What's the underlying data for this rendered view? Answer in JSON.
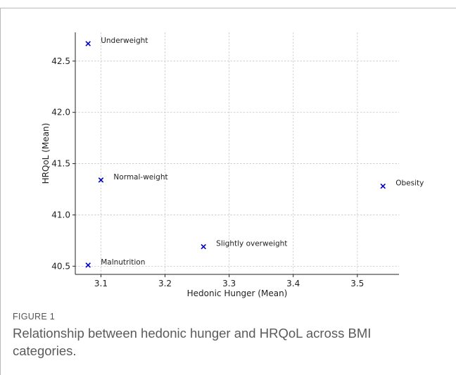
{
  "figure": {
    "label": "FIGURE 1",
    "caption": "Relationship between hedonic hunger and HRQoL across BMI categories."
  },
  "chart_data": {
    "type": "scatter",
    "title": "",
    "xlabel": "Hedonic Hunger (Mean)",
    "ylabel": "HRQoL (Mean)",
    "xlim": [
      3.06,
      3.565
    ],
    "ylim": [
      40.42,
      42.78
    ],
    "xticks": [
      "3.1",
      "3.2",
      "3.3",
      "3.4",
      "3.5"
    ],
    "yticks": [
      "40.5",
      "41.0",
      "41.5",
      "42.0",
      "42.5"
    ],
    "grid": true,
    "marker": "x",
    "marker_color": "#0000cc",
    "points": [
      {
        "label": "Underweight",
        "x": 3.08,
        "y": 42.67
      },
      {
        "label": "Normal-weight",
        "x": 3.1,
        "y": 41.34
      },
      {
        "label": "Obesity",
        "x": 3.54,
        "y": 41.28
      },
      {
        "label": "Slightly overweight",
        "x": 3.26,
        "y": 40.69
      },
      {
        "label": "Malnutrition",
        "x": 3.08,
        "y": 40.51
      }
    ]
  }
}
